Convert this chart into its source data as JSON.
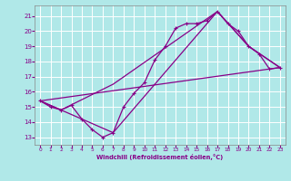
{
  "background_color": "#b0e8e8",
  "grid_color": "#d0e8e8",
  "line_color": "#880088",
  "marker": "+",
  "xlabel": "Windchill (Refroidissement éolien,°C)",
  "xlim": [
    -0.5,
    23.5
  ],
  "ylim": [
    12.5,
    21.7
  ],
  "yticks": [
    13,
    14,
    15,
    16,
    17,
    18,
    19,
    20,
    21
  ],
  "xticks": [
    0,
    1,
    2,
    3,
    4,
    5,
    6,
    7,
    8,
    9,
    10,
    11,
    12,
    13,
    14,
    15,
    16,
    17,
    18,
    19,
    20,
    21,
    22,
    23
  ],
  "line1_x": [
    0,
    1,
    2,
    3,
    4,
    5,
    6,
    7,
    8,
    9,
    10,
    11,
    12,
    13,
    14,
    15,
    16,
    17,
    18,
    19,
    20,
    21,
    22,
    23
  ],
  "line1_y": [
    15.4,
    15.0,
    14.8,
    15.1,
    14.2,
    13.5,
    13.0,
    13.3,
    15.0,
    15.9,
    16.6,
    18.1,
    19.0,
    20.2,
    20.5,
    20.5,
    20.7,
    21.3,
    20.5,
    20.0,
    19.0,
    18.5,
    17.5,
    17.6
  ],
  "line2_x": [
    0,
    2,
    7,
    17,
    20,
    23
  ],
  "line2_y": [
    15.4,
    14.8,
    13.3,
    21.3,
    19.0,
    17.6
  ],
  "line3_x": [
    0,
    2,
    7,
    17,
    20,
    23
  ],
  "line3_y": [
    15.4,
    14.8,
    16.5,
    21.3,
    19.0,
    17.6
  ],
  "line4_x": [
    0,
    23
  ],
  "line4_y": [
    15.4,
    17.6
  ]
}
